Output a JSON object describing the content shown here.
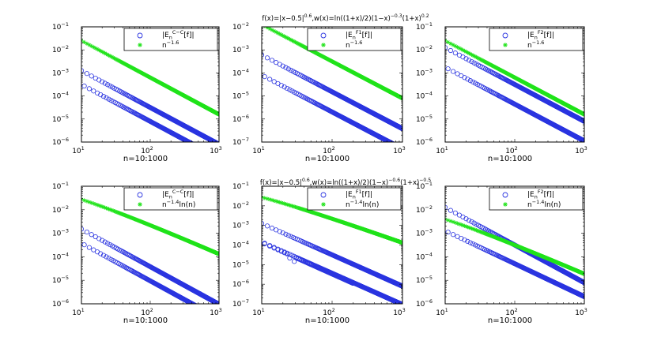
{
  "chart_data": [
    {
      "type": "scatter",
      "row_title": "f(x)=|x−0.5|^{0.6},w(x)=ln((1+x)/2)(1−x)^{−0.3}(1+x)^{0.2}",
      "title": "",
      "xlabel": "",
      "x": {
        "start": 10,
        "end": 1000,
        "scale": "log",
        "ticks": [
          "10^1",
          "10^2",
          "10^3"
        ],
        "xlim": [
          10,
          1000
        ]
      },
      "ylim": [
        1e-06,
        0.1
      ],
      "yticks": [
        "10^{-6}",
        "10^{-5}",
        "10^{-4}",
        "10^{-3}",
        "10^{-2}",
        "10^{-1}"
      ],
      "series": [
        {
          "name": "|E_n^{C−C}[f]|",
          "marker": "circle",
          "color": "#2b35e0",
          "model": "twoband",
          "upper": {
            "c": 0.05,
            "p": 1.6
          },
          "lower": {
            "c": 0.0125,
            "p": 1.6
          }
        },
        {
          "name": "n^{−1.6}",
          "marker": "star",
          "color": "#22e31c",
          "model": "power",
          "c": 1,
          "p": 1.6
        }
      ]
    },
    {
      "type": "scatter",
      "title": "",
      "xlabel": "",
      "x": {
        "start": 10,
        "end": 1000,
        "scale": "log",
        "ticks": [
          "10^1",
          "10^2",
          "10^3"
        ],
        "xlim": [
          10,
          1000
        ]
      },
      "ylim": [
        1e-07,
        0.01
      ],
      "yticks": [
        "10^{-7}",
        "10^{-6}",
        "10^{-5}",
        "10^{-4}",
        "10^{-3}",
        "10^{-2}"
      ],
      "series": [
        {
          "name": "|E_n^{F_1}[f]|",
          "marker": "circle",
          "color": "#2b35e0",
          "model": "twoband",
          "upper": {
            "c": 0.024,
            "p": 1.6
          },
          "lower": {
            "c": 0.0032,
            "p": 1.6
          }
        },
        {
          "name": "n^{−1.6}",
          "marker": "star",
          "color": "#22e31c",
          "model": "power",
          "c": 0.5,
          "p": 1.6
        }
      ]
    },
    {
      "type": "scatter",
      "title": "",
      "xlabel": "",
      "x": {
        "start": 10,
        "end": 1000,
        "scale": "log",
        "ticks": [
          "10^1",
          "10^2",
          "10^3"
        ],
        "xlim": [
          10,
          1000
        ]
      },
      "ylim": [
        1e-06,
        0.1
      ],
      "yticks": [
        "10^{-6}",
        "10^{-5}",
        "10^{-4}",
        "10^{-3}",
        "10^{-2}",
        "10^{-1}"
      ],
      "series": [
        {
          "name": "|E_n^{F_2}[f]|",
          "marker": "circle",
          "color": "#2b35e0",
          "model": "twoband",
          "upper": {
            "c": 0.5,
            "p": 1.6
          },
          "lower": {
            "c": 0.07,
            "p": 1.6
          }
        },
        {
          "name": "n^{−1.6}",
          "marker": "star",
          "color": "#22e31c",
          "model": "power",
          "c": 1,
          "p": 1.6
        }
      ]
    },
    {
      "type": "scatter",
      "row_title": "f(x)=|x−0.5|^{0.6},w(x)=ln((1+x)/2)(1−x)^{−0.6}(1+x)^{−0.5}",
      "title": "",
      "xlabel": "n=10:1000",
      "x": {
        "start": 10,
        "end": 1000,
        "scale": "log",
        "ticks": [
          "10^1",
          "10^2",
          "10^3"
        ],
        "xlim": [
          10,
          1000
        ]
      },
      "ylim": [
        1e-06,
        0.1
      ],
      "yticks": [
        "10^{-6}",
        "10^{-5}",
        "10^{-4}",
        "10^{-3}",
        "10^{-2}",
        "10^{-1}"
      ],
      "series": [
        {
          "name": "|E_n^{C−C}[f]|",
          "marker": "circle",
          "color": "#2b35e0",
          "model": "twoband",
          "upper": {
            "c": 0.06,
            "p": 1.6
          },
          "lower": {
            "c": 0.015,
            "p": 1.6
          }
        },
        {
          "name": "n^{−1.4}ln(n)",
          "marker": "star",
          "color": "#22e31c",
          "model": "powlog",
          "c": 0.3,
          "p": 1.4
        }
      ]
    },
    {
      "type": "scatter",
      "title": "",
      "xlabel": "n=10:1000",
      "x": {
        "start": 10,
        "end": 1000,
        "scale": "log",
        "ticks": [
          "10^1",
          "10^2",
          "10^3"
        ],
        "xlim": [
          10,
          1000
        ]
      },
      "ylim": [
        1e-07,
        0.1
      ],
      "yticks": [
        "10^{-7}",
        "10^{-6}",
        "10^{-5}",
        "10^{-4}",
        "10^{-3}",
        "10^{-2}",
        "10^{-1}"
      ],
      "series": [
        {
          "name": "|E_n^{F_1}[f]|",
          "marker": "circle",
          "color": "#2b35e0",
          "model": "dip",
          "upper": {
            "c": 0.05,
            "p": 1.6
          },
          "lower": {
            "c": 0.006,
            "p": 1.6
          },
          "dip": {
            "k": 0.03,
            "a": 0.96,
            "b": 0.88
          }
        },
        {
          "name": "n^{−1.4}ln(n)",
          "marker": "star",
          "color": "#22e31c",
          "model": "powlog",
          "c": 0.3,
          "p": 1.4
        }
      ]
    },
    {
      "type": "scatter",
      "title": "",
      "xlabel": "n=10:1000",
      "x": {
        "start": 10,
        "end": 1000,
        "scale": "log",
        "ticks": [
          "10^1",
          "10^2",
          "10^3"
        ],
        "xlim": [
          10,
          1000
        ]
      },
      "ylim": [
        1e-06,
        0.1
      ],
      "yticks": [
        "10^{-6}",
        "10^{-5}",
        "10^{-4}",
        "10^{-3}",
        "10^{-2}",
        "10^{-1}"
      ],
      "series": [
        {
          "name": "|E_n^{F_2}[f]|",
          "marker": "circle",
          "color": "#2b35e0",
          "model": "twoband",
          "upper": {
            "c": 0.5,
            "p": 1.6
          },
          "lower": {
            "c": 0.032,
            "p": 1.4
          }
        },
        {
          "name": "n^{−1.4}ln(n)",
          "marker": "star",
          "color": "#22e31c",
          "model": "powlog",
          "c": 0.043,
          "p": 1.4
        }
      ]
    }
  ]
}
